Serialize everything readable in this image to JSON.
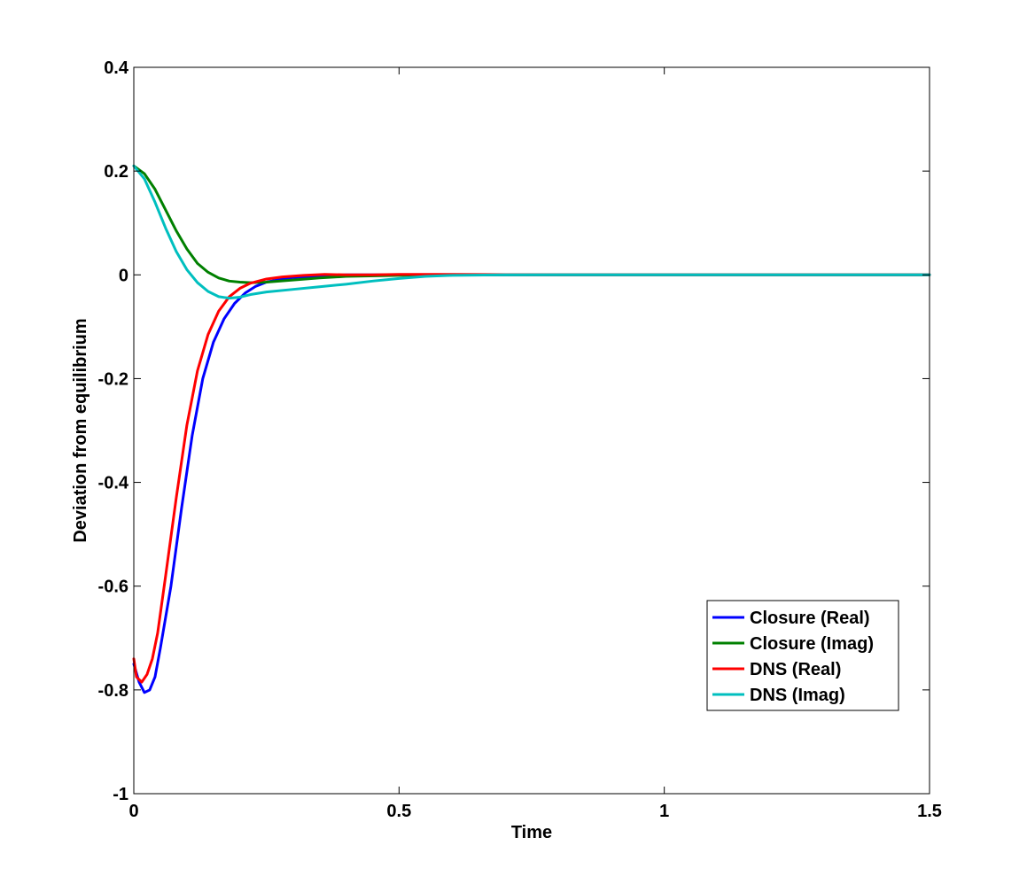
{
  "chart_data": {
    "type": "line",
    "title": "",
    "xlabel": "Time",
    "ylabel": "Deviation from equilibrium",
    "xlim": [
      0,
      1.5
    ],
    "ylim": [
      -1,
      0.4
    ],
    "xticks": [
      0,
      0.5,
      1,
      1.5
    ],
    "xtick_labels": [
      "0",
      "0.5",
      "1",
      "1.5"
    ],
    "yticks": [
      -1,
      -0.8,
      -0.6,
      -0.4,
      -0.2,
      0,
      0.2,
      0.4
    ],
    "ytick_labels": [
      "-1",
      "-0.8",
      "-0.6",
      "-0.4",
      "-0.2",
      "0",
      "0.2",
      "0.4"
    ],
    "grid": false,
    "legend_position": "bottom-right",
    "series": [
      {
        "name": "Closure (Real)",
        "color": "#0000ff",
        "x": [
          0,
          0.01,
          0.02,
          0.03,
          0.04,
          0.05,
          0.07,
          0.09,
          0.11,
          0.13,
          0.15,
          0.17,
          0.19,
          0.21,
          0.23,
          0.25,
          0.27,
          0.3,
          0.35,
          0.4,
          0.45,
          0.5,
          0.6,
          0.7,
          0.8,
          1.0,
          1.2,
          1.5
        ],
        "y": [
          -0.75,
          -0.785,
          -0.805,
          -0.8,
          -0.775,
          -0.72,
          -0.6,
          -0.45,
          -0.31,
          -0.2,
          -0.13,
          -0.085,
          -0.055,
          -0.035,
          -0.022,
          -0.014,
          -0.01,
          -0.005,
          -0.002,
          0.0,
          0.0,
          0.0,
          0.0,
          0.0,
          0.0,
          0.0,
          0.0,
          0.0
        ]
      },
      {
        "name": "Closure (Imag)",
        "color": "#008000",
        "x": [
          0,
          0.02,
          0.04,
          0.06,
          0.08,
          0.1,
          0.12,
          0.14,
          0.16,
          0.18,
          0.2,
          0.22,
          0.25,
          0.3,
          0.35,
          0.4,
          0.5,
          0.6,
          0.8,
          1.0,
          1.5
        ],
        "y": [
          0.21,
          0.195,
          0.165,
          0.125,
          0.085,
          0.05,
          0.022,
          0.005,
          -0.006,
          -0.012,
          -0.014,
          -0.015,
          -0.014,
          -0.01,
          -0.006,
          -0.003,
          -0.001,
          0.0,
          0.0,
          0.0,
          0.0
        ]
      },
      {
        "name": "DNS (Real)",
        "color": "#ff0000",
        "x": [
          0,
          0.005,
          0.015,
          0.025,
          0.035,
          0.045,
          0.06,
          0.08,
          0.1,
          0.12,
          0.14,
          0.16,
          0.18,
          0.2,
          0.22,
          0.25,
          0.28,
          0.32,
          0.36,
          0.4,
          0.45,
          0.5,
          0.6,
          0.8,
          1.0,
          1.2,
          1.5
        ],
        "y": [
          -0.74,
          -0.775,
          -0.785,
          -0.77,
          -0.74,
          -0.69,
          -0.58,
          -0.43,
          -0.29,
          -0.185,
          -0.115,
          -0.07,
          -0.042,
          -0.026,
          -0.016,
          -0.008,
          -0.004,
          -0.001,
          0.001,
          0.0,
          0.0,
          0.001,
          0.001,
          0.0,
          0.0,
          0.0,
          0.0
        ]
      },
      {
        "name": "DNS (Imag)",
        "color": "#00bfbf",
        "x": [
          0,
          0.02,
          0.04,
          0.06,
          0.08,
          0.1,
          0.12,
          0.14,
          0.16,
          0.18,
          0.2,
          0.22,
          0.25,
          0.3,
          0.35,
          0.4,
          0.45,
          0.5,
          0.55,
          0.6,
          0.7,
          0.8,
          1.0,
          1.5
        ],
        "y": [
          0.21,
          0.185,
          0.14,
          0.09,
          0.045,
          0.01,
          -0.015,
          -0.032,
          -0.042,
          -0.045,
          -0.043,
          -0.038,
          -0.033,
          -0.028,
          -0.023,
          -0.018,
          -0.012,
          -0.007,
          -0.003,
          -0.001,
          0.0,
          0.0,
          0.0,
          0.0
        ]
      }
    ]
  }
}
